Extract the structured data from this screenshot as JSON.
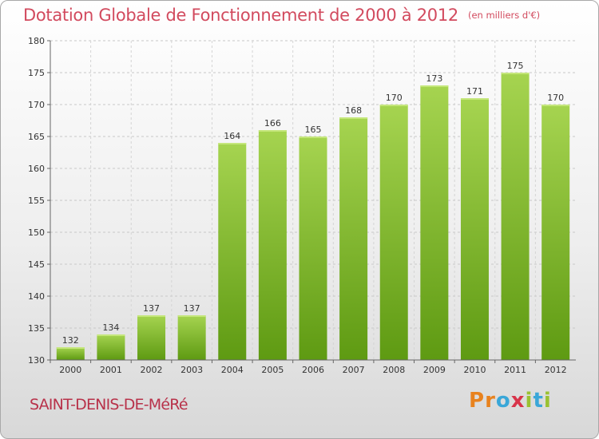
{
  "title": "Dotation Globale de Fonctionnement de 2000 à 2012",
  "subtitle": "(en milliers d'€)",
  "commune": "SAINT-DENIS-DE-MéRé",
  "logo": {
    "letters": [
      "P",
      "r",
      "o",
      "x",
      "i",
      "t",
      "i"
    ],
    "colors": [
      "#e8821e",
      "#e8821e",
      "#3aa7d8",
      "#d8344a",
      "#9ac132",
      "#3aa7d8",
      "#9ac132"
    ]
  },
  "colors": {
    "bar_top": "#a6d450",
    "bar_bottom": "#5e9a12",
    "title": "#d24a5e",
    "commune": "#b8324a"
  },
  "chart_data": {
    "type": "bar",
    "categories": [
      "2000",
      "2001",
      "2002",
      "2003",
      "2004",
      "2005",
      "2006",
      "2007",
      "2008",
      "2009",
      "2010",
      "2011",
      "2012"
    ],
    "values": [
      132,
      134,
      137,
      137,
      164,
      166,
      165,
      168,
      170,
      173,
      171,
      175,
      170
    ],
    "ylim": [
      130,
      180
    ],
    "yticks": [
      130,
      135,
      140,
      145,
      150,
      155,
      160,
      165,
      170,
      175,
      180
    ],
    "grid": "horizontal dashed",
    "xlabel": "",
    "ylabel": ""
  }
}
